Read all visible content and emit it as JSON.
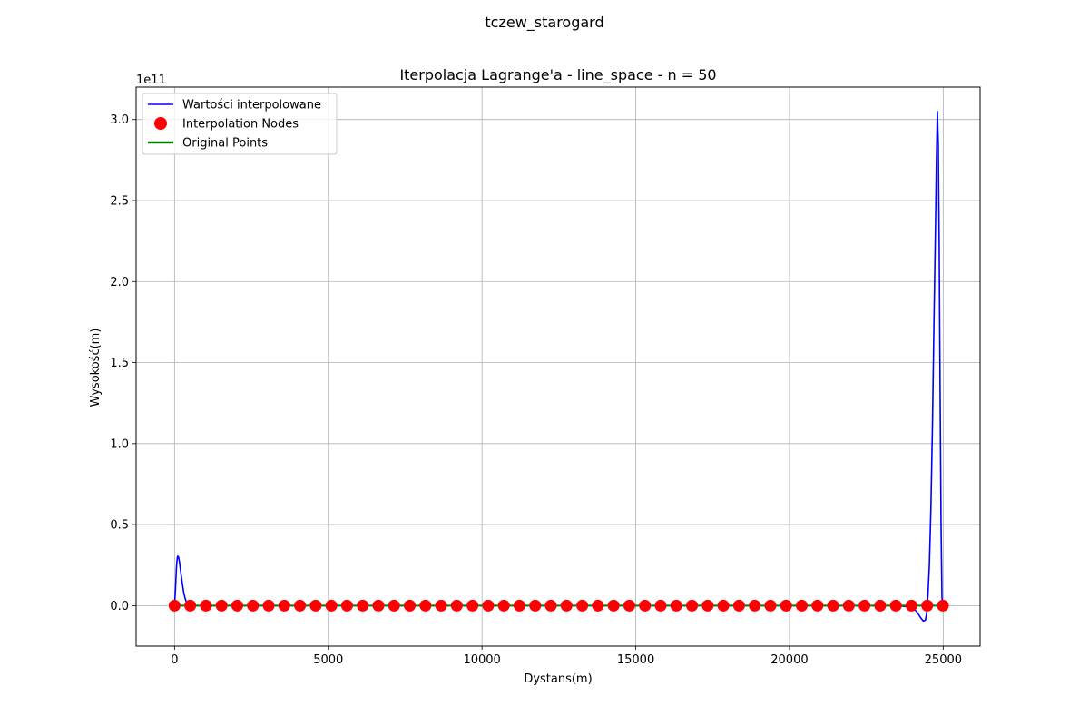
{
  "figure": {
    "suptitle": "tczew_starogard"
  },
  "chart_data": {
    "type": "line",
    "title": "Iterpolacja Lagrange'a - line_space - n = 50",
    "xlabel": "Dystans(m)",
    "ylabel": "Wysokość(m)",
    "y_offset_label": "1e11",
    "xlim": [
      -1250,
      26200
    ],
    "ylim": [
      -25000000000.0,
      320000000000.0
    ],
    "x_ticks": [
      0,
      5000,
      10000,
      15000,
      20000,
      25000
    ],
    "x_tick_labels": [
      "0",
      "5000",
      "10000",
      "15000",
      "20000",
      "25000"
    ],
    "y_ticks": [
      0,
      50000000000.0,
      100000000000.0,
      150000000000.0,
      200000000000.0,
      250000000000.0,
      300000000000.0
    ],
    "y_tick_labels": [
      "0.0",
      "0.5",
      "1.0",
      "1.5",
      "2.0",
      "2.5",
      "3.0"
    ],
    "grid": true,
    "legend_position": "upper-left",
    "series": [
      {
        "name": "Wartości interpolowane",
        "kind": "line",
        "color": "#0000ff",
        "x": [
          0,
          30,
          60,
          80,
          100,
          130,
          160,
          200,
          250,
          300,
          350,
          400,
          450,
          500,
          700,
          1000,
          5000,
          10000,
          15000,
          20000,
          23500,
          24000,
          24150,
          24250,
          24350,
          24420,
          24460,
          24500,
          24550,
          24600,
          24650,
          24700,
          24750,
          24780,
          24810,
          24840,
          24870,
          24900,
          24930,
          24960,
          24990
        ],
        "y": [
          0,
          10000000000.0,
          23000000000.0,
          28000000000.0,
          30500000000.0,
          30000000000.0,
          27000000000.0,
          21000000000.0,
          14000000000.0,
          8000000000.0,
          4000000000.0,
          1500000000.0,
          500000000.0,
          0,
          0,
          0,
          0,
          0,
          0,
          0,
          0,
          -1000000000.0,
          -4000000000.0,
          -7000000000.0,
          -9500000000.0,
          -9000000000.0,
          -5000000000.0,
          5000000000.0,
          25000000000.0,
          60000000000.0,
          110000000000.0,
          175000000000.0,
          235000000000.0,
          275000000000.0,
          305000000000.0,
          285000000000.0,
          220000000000.0,
          130000000000.0,
          50000000000.0,
          5000000000.0,
          0
        ]
      },
      {
        "name": "Interpolation Nodes",
        "kind": "scatter",
        "color": "#ff0000",
        "x": [
          0,
          510,
          1020,
          1530,
          2040,
          2550,
          3060,
          3570,
          4080,
          4590,
          5100,
          5610,
          6120,
          6630,
          7140,
          7650,
          8160,
          8670,
          9180,
          9690,
          10200,
          10710,
          11220,
          11730,
          12240,
          12750,
          13260,
          13770,
          14280,
          14790,
          15300,
          15810,
          16320,
          16830,
          17340,
          17850,
          18360,
          18870,
          19380,
          19890,
          20400,
          20910,
          21420,
          21930,
          22440,
          22950,
          23460,
          23970,
          24480,
          24990
        ],
        "y": [
          0,
          0,
          0,
          0,
          0,
          0,
          0,
          0,
          0,
          0,
          0,
          0,
          0,
          0,
          0,
          0,
          0,
          0,
          0,
          0,
          0,
          0,
          0,
          0,
          0,
          0,
          0,
          0,
          0,
          0,
          0,
          0,
          0,
          0,
          0,
          0,
          0,
          0,
          0,
          0,
          0,
          0,
          0,
          0,
          0,
          0,
          0,
          0,
          0,
          0
        ]
      },
      {
        "name": "Original Points",
        "kind": "line",
        "color": "#008000",
        "x": [
          0,
          24990
        ],
        "y": [
          0,
          0
        ]
      }
    ]
  }
}
